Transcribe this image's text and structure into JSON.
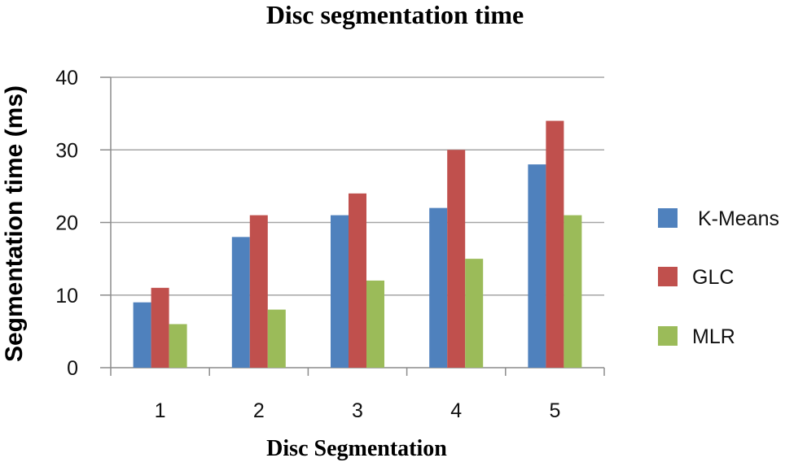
{
  "chart_data": {
    "type": "bar",
    "title": "Disc segmentation time",
    "xlabel": "Disc Segmentation",
    "ylabel": "Segmentation time (ms)",
    "categories": [
      "1",
      "2",
      "3",
      "4",
      "5"
    ],
    "ylim": [
      0,
      40
    ],
    "yticks": [
      0,
      10,
      20,
      30,
      40
    ],
    "grid": true,
    "legend_position": "right",
    "series": [
      {
        "name": " K-Means",
        "color": "#4f81bd",
        "values": [
          9,
          18,
          21,
          22,
          28
        ]
      },
      {
        "name": "GLC",
        "color": "#c0504d",
        "values": [
          11,
          21,
          24,
          30,
          34
        ]
      },
      {
        "name": "MLR",
        "color": "#9bbb59",
        "values": [
          6,
          8,
          12,
          15,
          21
        ]
      }
    ]
  }
}
